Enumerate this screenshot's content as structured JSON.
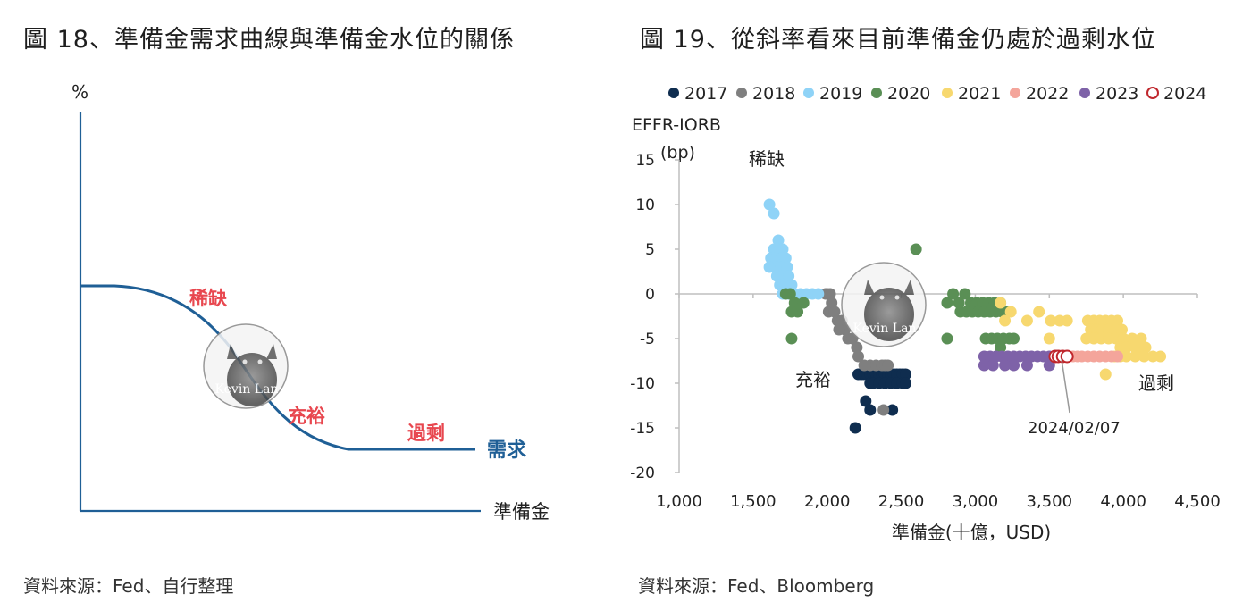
{
  "left_panel": {
    "title": "圖 18、準備金需求曲線與準備金水位的關係",
    "source": "資料來源：Fed、自行整理",
    "chart_data": {
      "type": "line",
      "title": "圖 18、準備金需求曲線與準備金水位的關係",
      "ylabel": "%",
      "xlabel": "準備金",
      "series": [
        {
          "name": "需求"
        }
      ],
      "annotations": [
        "稀缺",
        "充裕",
        "過剩"
      ],
      "grid": false,
      "colors": {
        "curve": "#1f5f96",
        "annotation": "#e8474f",
        "axis": "#1f5f96"
      }
    }
  },
  "right_panel": {
    "title": "圖 19、從斜率看來目前準備金仍處於過剩水位",
    "source": "資料來源：Fed、Bloomberg",
    "chart_data": {
      "type": "scatter",
      "title": "圖 19、從斜率看來目前準備金仍處於過剩水位",
      "xlabel": "準備金(十億，USD)",
      "ylabel": "EFFR-IORB",
      "ylabel_unit": "(bp)",
      "xlim": [
        1000,
        4500
      ],
      "ylim": [
        -20,
        15
      ],
      "x_ticks": [
        "1,000",
        "1,500",
        "2,000",
        "2,500",
        "3,000",
        "3,500",
        "4,000",
        "4,500"
      ],
      "x_tick_values": [
        1000,
        1500,
        2000,
        2500,
        3000,
        3500,
        4000,
        4500
      ],
      "y_ticks": [
        "15",
        "10",
        "5",
        "0",
        "-5",
        "-10",
        "-15",
        "-20"
      ],
      "y_tick_values": [
        15,
        10,
        5,
        0,
        -5,
        -10,
        -15,
        -20
      ],
      "grid": false,
      "legend_position": "top",
      "annotations": {
        "scarce": "稀缺",
        "ample": "充裕",
        "excess": "過剩",
        "date_callout": "2024/02/07"
      },
      "series": [
        {
          "name": "2017",
          "color": "#0f2d4f",
          "hollow": false,
          "points": [
            [
              2210,
              -9
            ],
            [
              2230,
              -9
            ],
            [
              2250,
              -9
            ],
            [
              2270,
              -9
            ],
            [
              2290,
              -9
            ],
            [
              2310,
              -9
            ],
            [
              2330,
              -9
            ],
            [
              2350,
              -9
            ],
            [
              2370,
              -9
            ],
            [
              2390,
              -9
            ],
            [
              2410,
              -9
            ],
            [
              2430,
              -9
            ],
            [
              2450,
              -9
            ],
            [
              2470,
              -9
            ],
            [
              2490,
              -9
            ],
            [
              2510,
              -9
            ],
            [
              2530,
              -9
            ],
            [
              2290,
              -10
            ],
            [
              2310,
              -10
            ],
            [
              2350,
              -10
            ],
            [
              2390,
              -10
            ],
            [
              2430,
              -10
            ],
            [
              2470,
              -10
            ],
            [
              2510,
              -10
            ],
            [
              2530,
              -10
            ],
            [
              2260,
              -12
            ],
            [
              2290,
              -13
            ],
            [
              2440,
              -13
            ],
            [
              2190,
              -15
            ]
          ]
        },
        {
          "name": "2018",
          "color": "#7f7f7f",
          "hollow": false,
          "points": [
            [
              1990,
              0
            ],
            [
              2000,
              0
            ],
            [
              2020,
              0
            ],
            [
              2030,
              -1
            ],
            [
              2010,
              -2
            ],
            [
              2050,
              -2
            ],
            [
              2070,
              -3
            ],
            [
              2100,
              -3
            ],
            [
              2120,
              -4
            ],
            [
              2080,
              -4
            ],
            [
              2140,
              -5
            ],
            [
              2170,
              -5
            ],
            [
              2200,
              -6
            ],
            [
              2210,
              -7
            ],
            [
              2250,
              -8
            ],
            [
              2290,
              -8
            ],
            [
              2330,
              -8
            ],
            [
              2370,
              -8
            ],
            [
              2390,
              -8
            ],
            [
              2410,
              -8
            ],
            [
              2380,
              -13
            ]
          ]
        },
        {
          "name": "2019",
          "color": "#8fd3f7",
          "hollow": false,
          "points": [
            [
              1610,
              10
            ],
            [
              1640,
              9
            ],
            [
              1670,
              6
            ],
            [
              1640,
              5
            ],
            [
              1680,
              5
            ],
            [
              1700,
              5
            ],
            [
              1620,
              4
            ],
            [
              1650,
              4
            ],
            [
              1690,
              4
            ],
            [
              1720,
              4
            ],
            [
              1640,
              3
            ],
            [
              1670,
              3
            ],
            [
              1700,
              3
            ],
            [
              1730,
              3
            ],
            [
              1610,
              3
            ],
            [
              1660,
              2
            ],
            [
              1700,
              2
            ],
            [
              1740,
              2
            ],
            [
              1680,
              1
            ],
            [
              1720,
              1
            ],
            [
              1760,
              1
            ],
            [
              1700,
              0
            ],
            [
              1740,
              0
            ],
            [
              1780,
              0
            ],
            [
              1820,
              0
            ],
            [
              1860,
              0
            ],
            [
              1900,
              0
            ],
            [
              1940,
              0
            ]
          ]
        },
        {
          "name": "2020",
          "color": "#5a8f55",
          "hollow": false,
          "points": [
            [
              1750,
              0
            ],
            [
              1720,
              0
            ],
            [
              1780,
              -1
            ],
            [
              1800,
              -2
            ],
            [
              1760,
              -2
            ],
            [
              1840,
              -1
            ],
            [
              1760,
              -5
            ],
            [
              2600,
              5
            ],
            [
              2810,
              -1
            ],
            [
              2850,
              0
            ],
            [
              2890,
              -1
            ],
            [
              2930,
              0
            ],
            [
              2970,
              -1
            ],
            [
              3010,
              -1
            ],
            [
              3050,
              -1
            ],
            [
              3090,
              -1
            ],
            [
              3130,
              -1
            ],
            [
              3170,
              -1
            ],
            [
              2900,
              -2
            ],
            [
              2940,
              -2
            ],
            [
              2980,
              -2
            ],
            [
              3020,
              -2
            ],
            [
              3060,
              -2
            ],
            [
              3100,
              -2
            ],
            [
              3140,
              -2
            ],
            [
              3180,
              -2
            ],
            [
              3220,
              -2
            ],
            [
              2810,
              -5
            ],
            [
              3070,
              -5
            ],
            [
              3110,
              -5
            ],
            [
              3150,
              -5
            ],
            [
              3190,
              -5
            ],
            [
              3230,
              -5
            ],
            [
              3260,
              -5
            ],
            [
              3170,
              -6
            ]
          ]
        },
        {
          "name": "2021",
          "color": "#f7d86f",
          "hollow": false,
          "points": [
            [
              3170,
              -1
            ],
            [
              3240,
              -2
            ],
            [
              3430,
              -2
            ],
            [
              3200,
              -3
            ],
            [
              3350,
              -3
            ],
            [
              3510,
              -3
            ],
            [
              3570,
              -3
            ],
            [
              3620,
              -3
            ],
            [
              3760,
              -3
            ],
            [
              3800,
              -3
            ],
            [
              3840,
              -3
            ],
            [
              3880,
              -3
            ],
            [
              3920,
              -3
            ],
            [
              3960,
              -3
            ],
            [
              3780,
              -4
            ],
            [
              3820,
              -4
            ],
            [
              3860,
              -4
            ],
            [
              3900,
              -4
            ],
            [
              3950,
              -4
            ],
            [
              3990,
              -4
            ],
            [
              3750,
              -5
            ],
            [
              3800,
              -5
            ],
            [
              3850,
              -5
            ],
            [
              3900,
              -5
            ],
            [
              3950,
              -5
            ],
            [
              4000,
              -5
            ],
            [
              4060,
              -5
            ],
            [
              4120,
              -5
            ],
            [
              3500,
              -5
            ],
            [
              3980,
              -6
            ],
            [
              4020,
              -6
            ],
            [
              4080,
              -6
            ],
            [
              4120,
              -6
            ],
            [
              4150,
              -6
            ],
            [
              3940,
              -7
            ],
            [
              3980,
              -7
            ],
            [
              4020,
              -7
            ],
            [
              4080,
              -7
            ],
            [
              4140,
              -7
            ],
            [
              4200,
              -7
            ],
            [
              4250,
              -7
            ],
            [
              3880,
              -9
            ]
          ]
        },
        {
          "name": "2022",
          "color": "#f4a59b",
          "hollow": false,
          "points": [
            [
              3630,
              -7
            ],
            [
              3660,
              -7
            ],
            [
              3690,
              -7
            ],
            [
              3720,
              -7
            ],
            [
              3760,
              -7
            ],
            [
              3800,
              -7
            ],
            [
              3840,
              -7
            ],
            [
              3880,
              -7
            ],
            [
              3920,
              -7
            ],
            [
              3960,
              -7
            ]
          ]
        },
        {
          "name": "2023",
          "color": "#7e62a8",
          "hollow": false,
          "points": [
            [
              3060,
              -7
            ],
            [
              3100,
              -7
            ],
            [
              3140,
              -7
            ],
            [
              3180,
              -7
            ],
            [
              3220,
              -7
            ],
            [
              3260,
              -7
            ],
            [
              3300,
              -7
            ],
            [
              3340,
              -7
            ],
            [
              3380,
              -7
            ],
            [
              3420,
              -7
            ],
            [
              3460,
              -7
            ],
            [
              3500,
              -7
            ],
            [
              3060,
              -8
            ],
            [
              3120,
              -8
            ],
            [
              3260,
              -8
            ],
            [
              3350,
              -8
            ],
            [
              3500,
              -8
            ],
            [
              3200,
              -8
            ]
          ]
        },
        {
          "name": "2024",
          "color": "#c0272d",
          "hollow": true,
          "points": [
            [
              3540,
              -7
            ],
            [
              3560,
              -7
            ],
            [
              3590,
              -7
            ],
            [
              3620,
              -7
            ]
          ]
        }
      ]
    }
  },
  "watermark": {
    "text": "Kevin Lan",
    "icon": "cat-photo-icon"
  }
}
